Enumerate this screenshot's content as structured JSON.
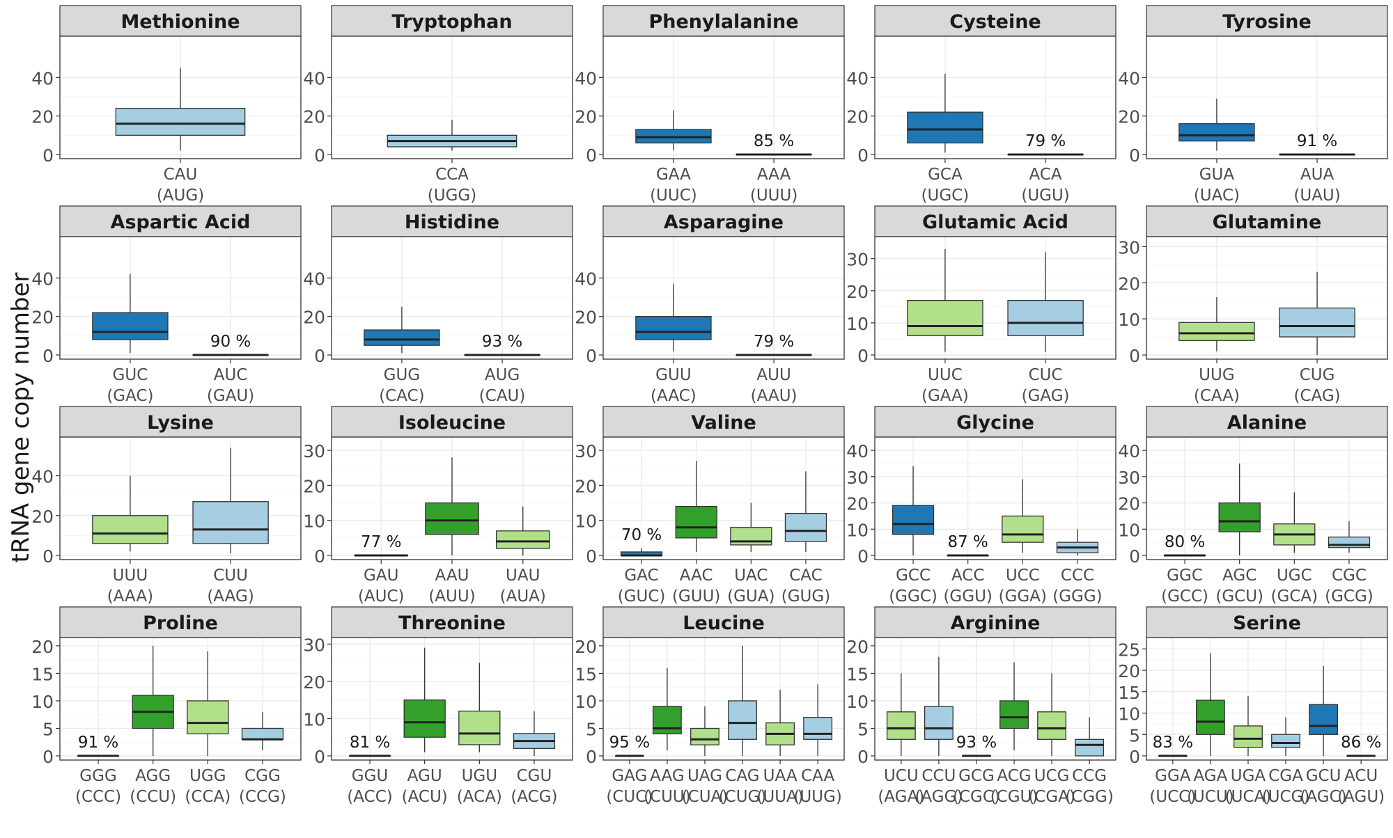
{
  "figure": {
    "ylabel": "tRNA gene copy number",
    "colors": {
      "dark_blue": "#1f78b4",
      "light_blue": "#a6cee3",
      "dark_green": "#33a02c",
      "light_green": "#b2df8a",
      "strip_bg": "#d9d9d9",
      "grid": "#ebebeb"
    }
  },
  "chart_data": [
    {
      "type": "box",
      "title": "Methionine",
      "ylim": [
        0,
        60
      ],
      "yticks": [
        0,
        20,
        40
      ],
      "boxes": [
        {
          "codon": "CAU",
          "anticodon": "(AUG)",
          "color": "light_blue",
          "min": 2,
          "q1": 10,
          "median": 16,
          "q3": 24,
          "max": 45
        }
      ]
    },
    {
      "type": "box",
      "title": "Tryptophan",
      "ylim": [
        0,
        60
      ],
      "yticks": [
        0,
        20,
        40
      ],
      "boxes": [
        {
          "codon": "CCA",
          "anticodon": "(UGG)",
          "color": "light_blue",
          "min": 2,
          "q1": 4,
          "median": 7,
          "q3": 10,
          "max": 18
        }
      ]
    },
    {
      "type": "box",
      "title": "Phenylalanine",
      "ylim": [
        0,
        60
      ],
      "yticks": [
        0,
        20,
        40
      ],
      "boxes": [
        {
          "codon": "GAA",
          "anticodon": "(UUC)",
          "color": "dark_blue",
          "min": 2,
          "q1": 6,
          "median": 9,
          "q3": 13,
          "max": 23
        },
        {
          "codon": "AAA",
          "anticodon": "(UUU)",
          "color": "dark_blue",
          "min": 0,
          "q1": 0,
          "median": 0,
          "q3": 0,
          "max": 0,
          "label": "85 %"
        }
      ]
    },
    {
      "type": "box",
      "title": "Cysteine",
      "ylim": [
        0,
        60
      ],
      "yticks": [
        0,
        20,
        40
      ],
      "boxes": [
        {
          "codon": "GCA",
          "anticodon": "(UGC)",
          "color": "dark_blue",
          "min": 1,
          "q1": 6,
          "median": 13,
          "q3": 22,
          "max": 42
        },
        {
          "codon": "ACA",
          "anticodon": "(UGU)",
          "color": "dark_blue",
          "min": 0,
          "q1": 0,
          "median": 0,
          "q3": 0,
          "max": 0,
          "label": "79 %"
        }
      ]
    },
    {
      "type": "box",
      "title": "Tyrosine",
      "ylim": [
        0,
        60
      ],
      "yticks": [
        0,
        20,
        40
      ],
      "boxes": [
        {
          "codon": "GUA",
          "anticodon": "(UAC)",
          "color": "dark_blue",
          "min": 2,
          "q1": 7,
          "median": 10,
          "q3": 16,
          "max": 29
        },
        {
          "codon": "AUA",
          "anticodon": "(UAU)",
          "color": "dark_blue",
          "min": 0,
          "q1": 0,
          "median": 0,
          "q3": 0,
          "max": 0,
          "label": "91 %"
        }
      ]
    },
    {
      "type": "box",
      "title": "Aspartic Acid",
      "ylim": [
        0,
        60
      ],
      "yticks": [
        0,
        20,
        40
      ],
      "boxes": [
        {
          "codon": "GUC",
          "anticodon": "(GAC)",
          "color": "dark_blue",
          "min": 1,
          "q1": 8,
          "median": 12,
          "q3": 22,
          "max": 42
        },
        {
          "codon": "AUC",
          "anticodon": "(GAU)",
          "color": "dark_blue",
          "min": 0,
          "q1": 0,
          "median": 0,
          "q3": 0,
          "max": 0,
          "label": "90 %"
        }
      ]
    },
    {
      "type": "box",
      "title": "Histidine",
      "ylim": [
        0,
        60
      ],
      "yticks": [
        0,
        20,
        40
      ],
      "boxes": [
        {
          "codon": "GUG",
          "anticodon": "(CAC)",
          "color": "dark_blue",
          "min": 1,
          "q1": 5,
          "median": 8,
          "q3": 13,
          "max": 25
        },
        {
          "codon": "AUG",
          "anticodon": "(CAU)",
          "color": "dark_blue",
          "min": 0,
          "q1": 0,
          "median": 0,
          "q3": 0,
          "max": 0,
          "label": "93 %"
        }
      ]
    },
    {
      "type": "box",
      "title": "Asparagine",
      "ylim": [
        0,
        60
      ],
      "yticks": [
        0,
        20,
        40
      ],
      "boxes": [
        {
          "codon": "GUU",
          "anticodon": "(AAC)",
          "color": "dark_blue",
          "min": 2,
          "q1": 8,
          "median": 12,
          "q3": 20,
          "max": 37
        },
        {
          "codon": "AUU",
          "anticodon": "(AAU)",
          "color": "dark_blue",
          "min": 0,
          "q1": 0,
          "median": 0,
          "q3": 0,
          "max": 0,
          "label": "79 %"
        }
      ]
    },
    {
      "type": "box",
      "title": "Glutamic Acid",
      "ylim": [
        0,
        36
      ],
      "yticks": [
        0,
        10,
        20,
        30
      ],
      "boxes": [
        {
          "codon": "UUC",
          "anticodon": "(GAA)",
          "color": "light_green",
          "min": 1,
          "q1": 6,
          "median": 9,
          "q3": 17,
          "max": 33
        },
        {
          "codon": "CUC",
          "anticodon": "(GAG)",
          "color": "light_blue",
          "min": 1,
          "q1": 6,
          "median": 10,
          "q3": 17,
          "max": 32
        }
      ]
    },
    {
      "type": "box",
      "title": "Glutamine",
      "ylim": [
        0,
        32
      ],
      "yticks": [
        0,
        10,
        20,
        30
      ],
      "boxes": [
        {
          "codon": "UUG",
          "anticodon": "(CAA)",
          "color": "light_green",
          "min": 1,
          "q1": 4,
          "median": 6,
          "q3": 9,
          "max": 16
        },
        {
          "codon": "CUG",
          "anticodon": "(CAG)",
          "color": "light_blue",
          "min": 0,
          "q1": 5,
          "median": 8,
          "q3": 13,
          "max": 23
        }
      ]
    },
    {
      "type": "box",
      "title": "Lysine",
      "ylim": [
        0,
        58
      ],
      "yticks": [
        0,
        20,
        40
      ],
      "boxes": [
        {
          "codon": "UUU",
          "anticodon": "(AAA)",
          "color": "light_green",
          "min": 2,
          "q1": 6,
          "median": 11,
          "q3": 20,
          "max": 40
        },
        {
          "codon": "CUU",
          "anticodon": "(AAG)",
          "color": "light_blue",
          "min": 1,
          "q1": 6,
          "median": 13,
          "q3": 27,
          "max": 54
        }
      ]
    },
    {
      "type": "box",
      "title": "Isoleucine",
      "ylim": [
        0,
        33
      ],
      "yticks": [
        0,
        10,
        20,
        30
      ],
      "boxes": [
        {
          "codon": "GAU",
          "anticodon": "(AUC)",
          "color": "dark_green",
          "min": 0,
          "q1": 0,
          "median": 0,
          "q3": 0,
          "max": 0,
          "label": "77 %"
        },
        {
          "codon": "AAU",
          "anticodon": "(AUU)",
          "color": "dark_green",
          "min": 0,
          "q1": 6,
          "median": 10,
          "q3": 15,
          "max": 28
        },
        {
          "codon": "UAU",
          "anticodon": "(AUA)",
          "color": "light_green",
          "min": 0,
          "q1": 2,
          "median": 4,
          "q3": 7,
          "max": 14
        }
      ]
    },
    {
      "type": "box",
      "title": "Valine",
      "ylim": [
        0,
        33
      ],
      "yticks": [
        0,
        10,
        20,
        30
      ],
      "boxes": [
        {
          "codon": "GAC",
          "anticodon": "(GUC)",
          "color": "dark_blue",
          "min": 0,
          "q1": 0,
          "median": 0,
          "q3": 1,
          "max": 2,
          "label": "70 %"
        },
        {
          "codon": "AAC",
          "anticodon": "(GUU)",
          "color": "dark_green",
          "min": 1,
          "q1": 5,
          "median": 8,
          "q3": 14,
          "max": 27
        },
        {
          "codon": "UAC",
          "anticodon": "(GUA)",
          "color": "light_green",
          "min": 1,
          "q1": 3,
          "median": 4,
          "q3": 8,
          "max": 15
        },
        {
          "codon": "CAC",
          "anticodon": "(GUG)",
          "color": "light_blue",
          "min": 1,
          "q1": 4,
          "median": 7,
          "q3": 12,
          "max": 24
        }
      ]
    },
    {
      "type": "box",
      "title": "Glycine",
      "ylim": [
        0,
        44
      ],
      "yticks": [
        0,
        10,
        20,
        30,
        40
      ],
      "boxes": [
        {
          "codon": "GCC",
          "anticodon": "(GGC)",
          "color": "dark_blue",
          "min": 0,
          "q1": 8,
          "median": 12,
          "q3": 19,
          "max": 34
        },
        {
          "codon": "ACC",
          "anticodon": "(GGU)",
          "color": "dark_blue",
          "min": 0,
          "q1": 0,
          "median": 0,
          "q3": 0,
          "max": 0,
          "label": "87 %"
        },
        {
          "codon": "UCC",
          "anticodon": "(GGA)",
          "color": "light_green",
          "min": 1,
          "q1": 5,
          "median": 8,
          "q3": 15,
          "max": 29
        },
        {
          "codon": "CCC",
          "anticodon": "(GGG)",
          "color": "light_blue",
          "min": 0,
          "q1": 1,
          "median": 3,
          "q3": 5,
          "max": 10
        }
      ]
    },
    {
      "type": "box",
      "title": "Alanine",
      "ylim": [
        0,
        44
      ],
      "yticks": [
        0,
        10,
        20,
        30,
        40
      ],
      "boxes": [
        {
          "codon": "GGC",
          "anticodon": "(GCC)",
          "color": "dark_blue",
          "min": 0,
          "q1": 0,
          "median": 0,
          "q3": 0,
          "max": 0,
          "label": "80 %"
        },
        {
          "codon": "AGC",
          "anticodon": "(GCU)",
          "color": "dark_green",
          "min": 0,
          "q1": 9,
          "median": 13,
          "q3": 20,
          "max": 35
        },
        {
          "codon": "UGC",
          "anticodon": "(GCA)",
          "color": "light_green",
          "min": 1,
          "q1": 4,
          "median": 8,
          "q3": 12,
          "max": 24
        },
        {
          "codon": "CGC",
          "anticodon": "(GCG)",
          "color": "light_blue",
          "min": 1,
          "q1": 3,
          "median": 4,
          "q3": 7,
          "max": 13
        }
      ]
    },
    {
      "type": "box",
      "title": "Proline",
      "ylim": [
        0,
        21
      ],
      "yticks": [
        0,
        5,
        10,
        15,
        20
      ],
      "boxes": [
        {
          "codon": "GGG",
          "anticodon": "(CCC)",
          "color": "dark_blue",
          "min": 0,
          "q1": 0,
          "median": 0,
          "q3": 0,
          "max": 0,
          "label": "91 %"
        },
        {
          "codon": "AGG",
          "anticodon": "(CCU)",
          "color": "dark_green",
          "min": 0,
          "q1": 5,
          "median": 8,
          "q3": 11,
          "max": 20
        },
        {
          "codon": "UGG",
          "anticodon": "(CCA)",
          "color": "light_green",
          "min": 0,
          "q1": 4,
          "median": 6,
          "q3": 10,
          "max": 19
        },
        {
          "codon": "CGG",
          "anticodon": "(CCG)",
          "color": "light_blue",
          "min": 1,
          "q1": 3,
          "median": 3,
          "q3": 5,
          "max": 8
        }
      ]
    },
    {
      "type": "box",
      "title": "Threonine",
      "ylim": [
        0,
        31
      ],
      "yticks": [
        0,
        10,
        20,
        30
      ],
      "boxes": [
        {
          "codon": "GGU",
          "anticodon": "(ACC)",
          "color": "dark_blue",
          "min": 0,
          "q1": 0,
          "median": 0,
          "q3": 0,
          "max": 0,
          "label": "81 %"
        },
        {
          "codon": "AGU",
          "anticodon": "(ACU)",
          "color": "dark_green",
          "min": 1,
          "q1": 5,
          "median": 9,
          "q3": 15,
          "max": 29
        },
        {
          "codon": "UGU",
          "anticodon": "(ACA)",
          "color": "light_green",
          "min": 1,
          "q1": 3,
          "median": 6,
          "q3": 12,
          "max": 25
        },
        {
          "codon": "CGU",
          "anticodon": "(ACG)",
          "color": "light_blue",
          "min": 0,
          "q1": 2,
          "median": 4,
          "q3": 6,
          "max": 12
        }
      ]
    },
    {
      "type": "box",
      "title": "Leucine",
      "ylim": [
        0,
        21
      ],
      "yticks": [
        0,
        5,
        10,
        15,
        20
      ],
      "boxes": [
        {
          "codon": "GAG",
          "anticodon": "(CUC)",
          "color": "dark_green",
          "min": 0,
          "q1": 0,
          "median": 0,
          "q3": 0,
          "max": 0,
          "label": "95 %"
        },
        {
          "codon": "AAG",
          "anticodon": "(CUU)",
          "color": "dark_green",
          "min": 1,
          "q1": 4,
          "median": 5,
          "q3": 9,
          "max": 16
        },
        {
          "codon": "UAG",
          "anticodon": "(CUA)",
          "color": "light_green",
          "min": 0,
          "q1": 2,
          "median": 3,
          "q3": 5,
          "max": 9
        },
        {
          "codon": "CAG",
          "anticodon": "(CUG)",
          "color": "light_blue",
          "min": 0,
          "q1": 3,
          "median": 6,
          "q3": 10,
          "max": 20
        },
        {
          "codon": "UAA",
          "anticodon": "(UUA)",
          "color": "light_green",
          "min": 0,
          "q1": 2,
          "median": 4,
          "q3": 6,
          "max": 12
        },
        {
          "codon": "CAA",
          "anticodon": "(UUG)",
          "color": "light_blue",
          "min": 0,
          "q1": 3,
          "median": 4,
          "q3": 7,
          "max": 13
        }
      ]
    },
    {
      "type": "box",
      "title": "Arginine",
      "ylim": [
        0,
        21
      ],
      "yticks": [
        0,
        5,
        10,
        15,
        20
      ],
      "boxes": [
        {
          "codon": "UCU",
          "anticodon": "(AGA)",
          "color": "light_green",
          "min": 0,
          "q1": 3,
          "median": 5,
          "q3": 8,
          "max": 15
        },
        {
          "codon": "CCU",
          "anticodon": "(AGG)",
          "color": "light_blue",
          "min": 0,
          "q1": 3,
          "median": 5,
          "q3": 9,
          "max": 18
        },
        {
          "codon": "GCG",
          "anticodon": "(CGC)",
          "color": "dark_blue",
          "min": 0,
          "q1": 0,
          "median": 0,
          "q3": 0,
          "max": 0,
          "label": "93 %"
        },
        {
          "codon": "ACG",
          "anticodon": "(CGU)",
          "color": "dark_green",
          "min": 1,
          "q1": 5,
          "median": 7,
          "q3": 10,
          "max": 17
        },
        {
          "codon": "UCG",
          "anticodon": "(CGA)",
          "color": "light_green",
          "min": 0,
          "q1": 3,
          "median": 5,
          "q3": 8,
          "max": 15
        },
        {
          "codon": "CCG",
          "anticodon": "(CGG)",
          "color": "light_blue",
          "min": 0,
          "q1": 0,
          "median": 2,
          "q3": 3,
          "max": 7
        }
      ]
    },
    {
      "type": "box",
      "title": "Serine",
      "ylim": [
        0,
        27
      ],
      "yticks": [
        0,
        5,
        10,
        15,
        20,
        25
      ],
      "boxes": [
        {
          "codon": "GGA",
          "anticodon": "(UCC)",
          "color": "dark_blue",
          "min": 0,
          "q1": 0,
          "median": 0,
          "q3": 0,
          "max": 0,
          "label": "83 %"
        },
        {
          "codon": "AGA",
          "anticodon": "(UCU)",
          "color": "dark_green",
          "min": 0,
          "q1": 5,
          "median": 8,
          "q3": 13,
          "max": 24
        },
        {
          "codon": "UGA",
          "anticodon": "(UCA)",
          "color": "light_green",
          "min": 0,
          "q1": 2,
          "median": 4,
          "q3": 7,
          "max": 14
        },
        {
          "codon": "CGA",
          "anticodon": "(UCG)",
          "color": "light_blue",
          "min": 0,
          "q1": 2,
          "median": 3,
          "q3": 5,
          "max": 9
        },
        {
          "codon": "GCU",
          "anticodon": "(AGC)",
          "color": "dark_blue",
          "min": 0,
          "q1": 5,
          "median": 7,
          "q3": 12,
          "max": 21
        },
        {
          "codon": "ACU",
          "anticodon": "(AGU)",
          "color": "dark_blue",
          "min": 0,
          "q1": 0,
          "median": 0,
          "q3": 0,
          "max": 0,
          "label": "86 %"
        }
      ]
    }
  ]
}
